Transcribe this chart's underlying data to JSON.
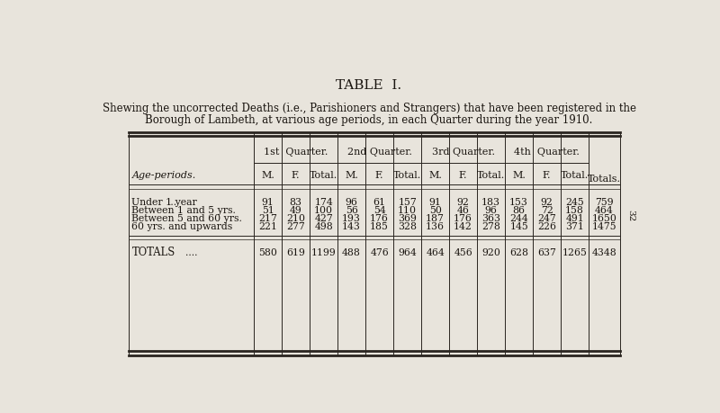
{
  "title": "TABLE  I.",
  "subtitle_line1": "Shewing the uncorrected Deaths (i.e., Parishioners and Strangers) that have been registered in the",
  "subtitle_line2": "Borough of Lambeth, at various age periods, in each Quarter during the year 1910.",
  "page_number": "32",
  "col_groups": [
    "1st  Quarter.",
    "2nd Quarter.",
    "3rd Quarter.",
    "4th  Quarter."
  ],
  "sub_cols": [
    "M.",
    "F.",
    "Total."
  ],
  "last_col": "Totals.",
  "row_label_col": "Age-periods.",
  "rows": [
    {
      "label": "Under 1 year       ...",
      "data": [
        91,
        83,
        174,
        96,
        61,
        157,
        91,
        92,
        183,
        153,
        92,
        245,
        759
      ]
    },
    {
      "label": "Between 1 and 5 yrs.",
      "data": [
        51,
        49,
        100,
        56,
        54,
        110,
        50,
        46,
        96,
        86,
        72,
        158,
        464
      ]
    },
    {
      "label": "Between 5 and 60 yrs.",
      "data": [
        217,
        210,
        427,
        193,
        176,
        369,
        187,
        176,
        363,
        244,
        247,
        491,
        1650
      ]
    },
    {
      "label": "60 yrs. and upwards",
      "data": [
        221,
        277,
        498,
        143,
        185,
        328,
        136,
        142,
        278,
        145,
        226,
        371,
        1475
      ]
    }
  ],
  "totals_label": "TOTALS",
  "totals_suffix": "....",
  "totals_data": [
    580,
    619,
    1199,
    488,
    476,
    964,
    464,
    456,
    920,
    628,
    637,
    1265,
    4348
  ],
  "bg_color": "#e8e4dc",
  "text_color": "#1a1510",
  "line_color": "#2a2520",
  "font_size_title": 11,
  "font_size_subtitle": 8.5,
  "font_size_header": 8.0,
  "font_size_data": 7.8,
  "font_size_page": 7.5
}
